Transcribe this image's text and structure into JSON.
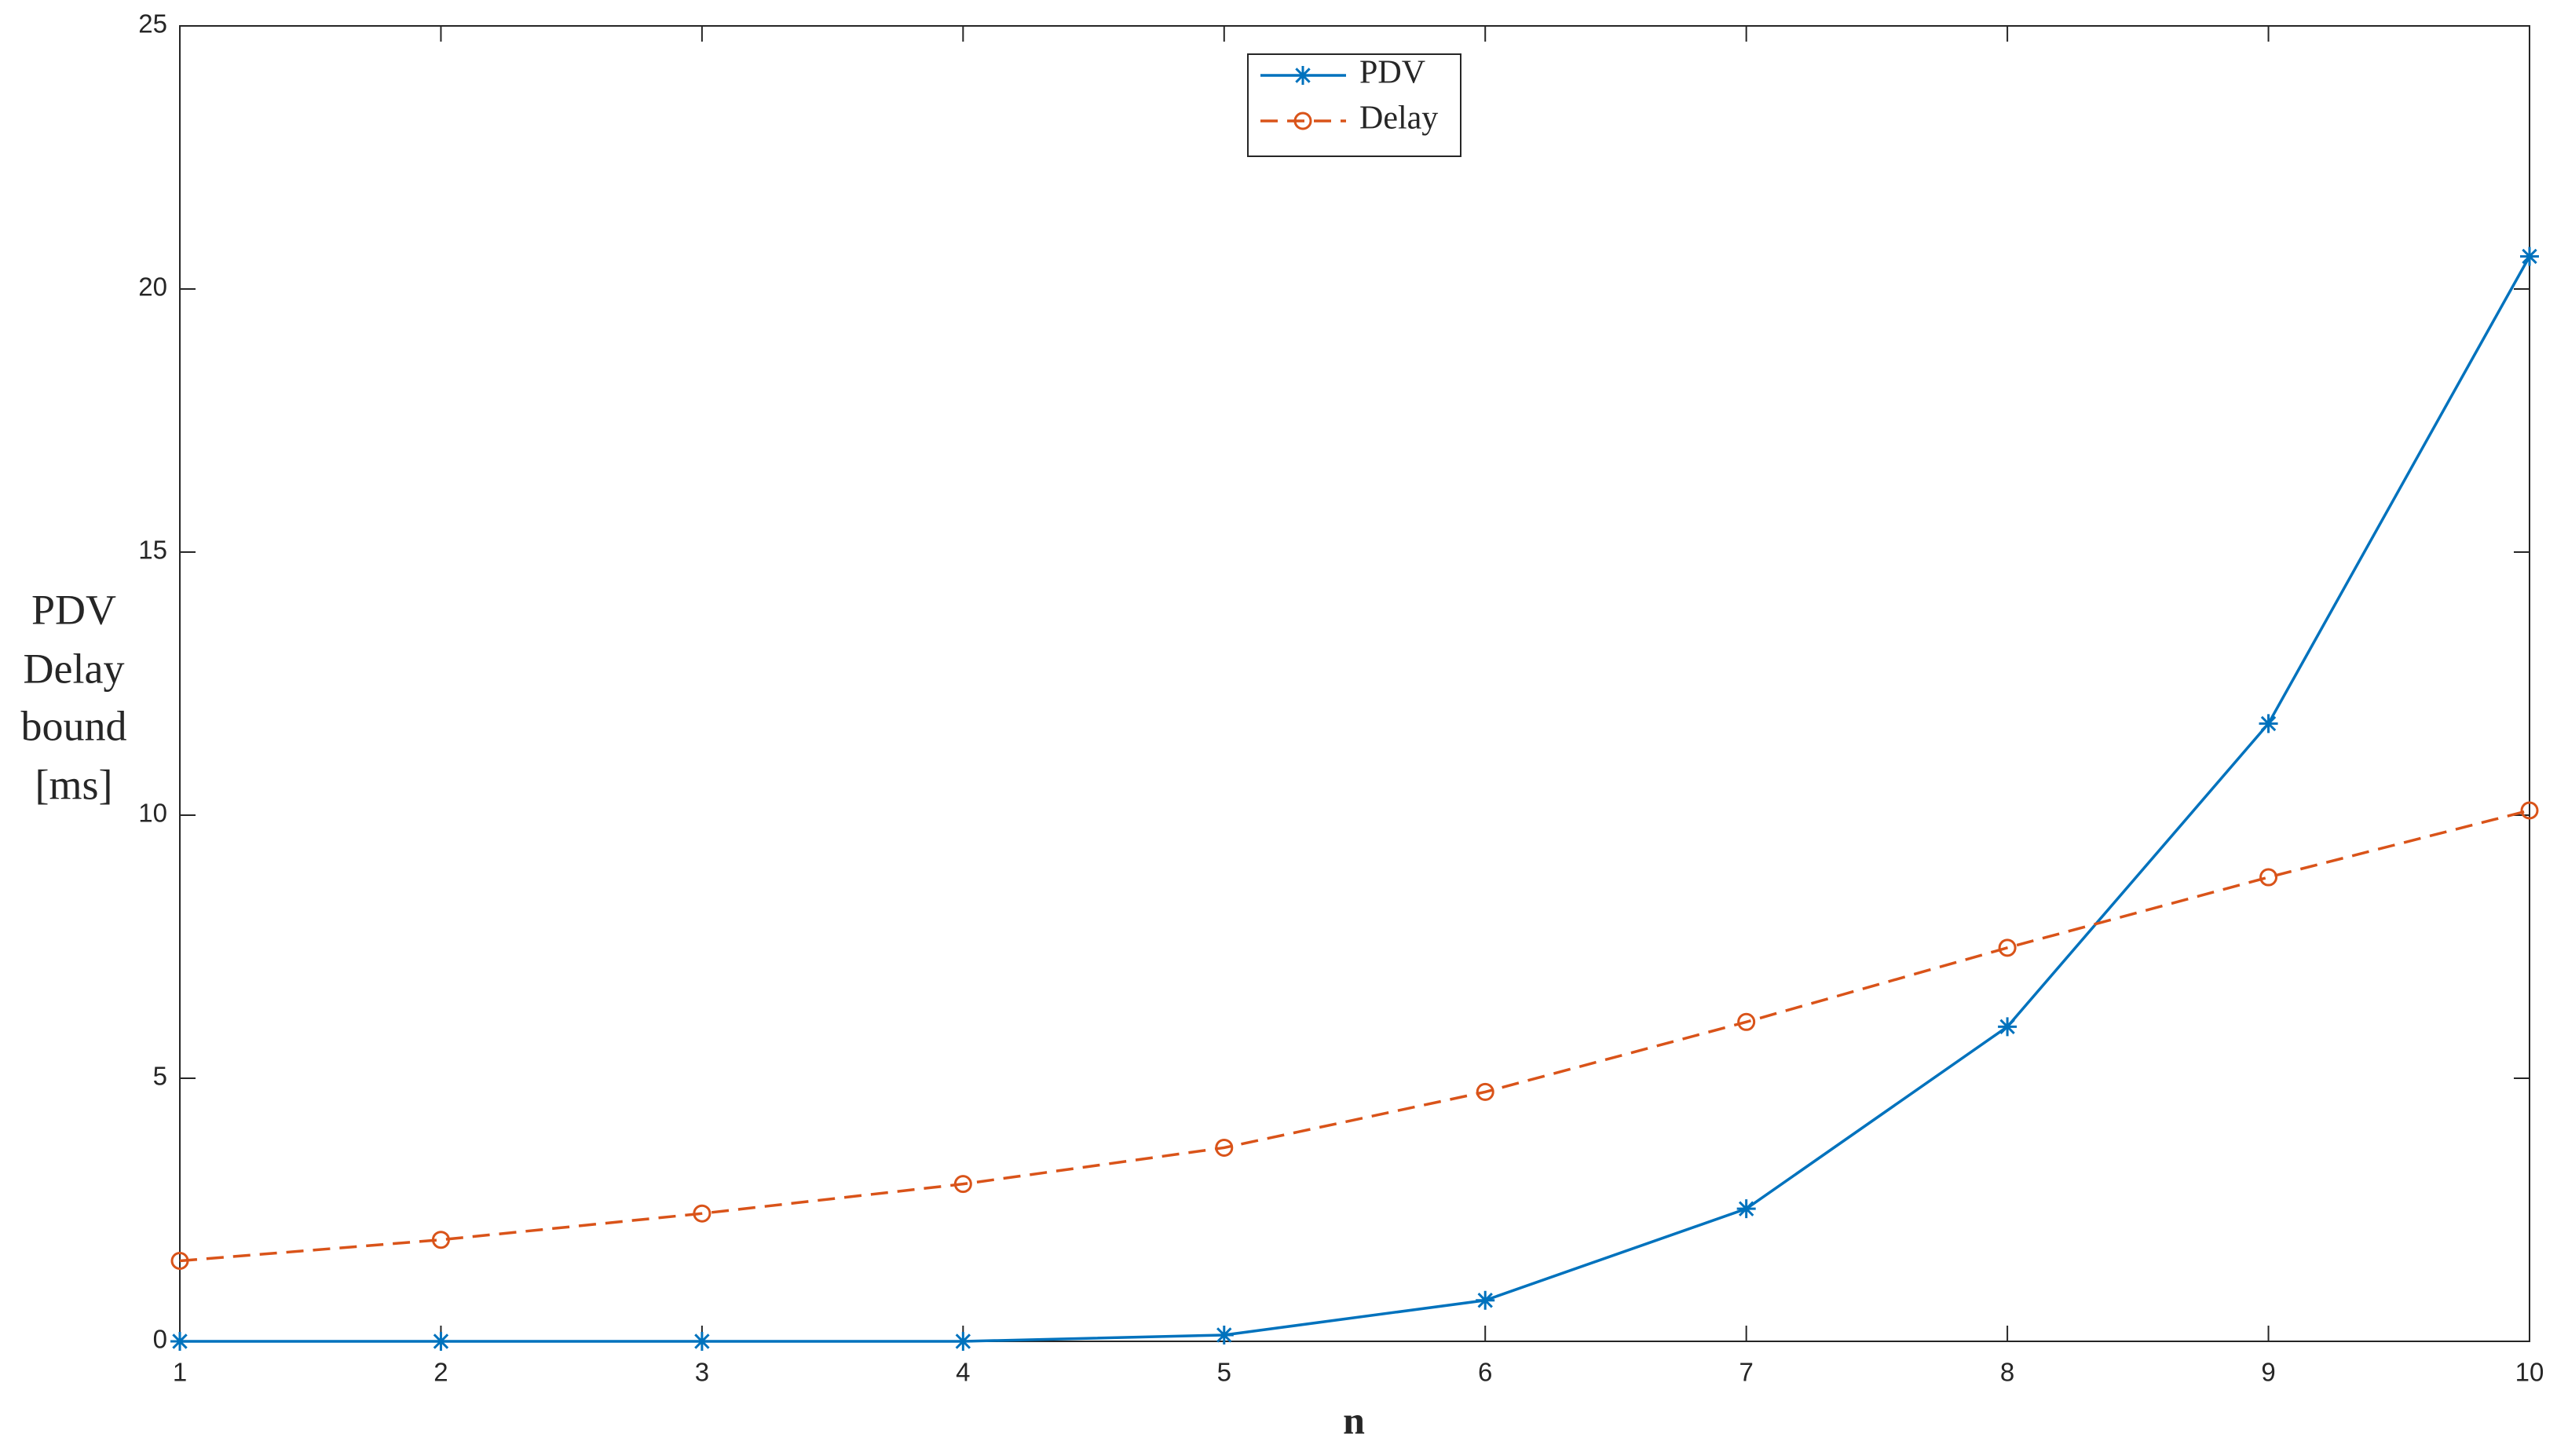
{
  "chart_data": {
    "type": "line",
    "x": [
      1,
      2,
      3,
      4,
      5,
      6,
      7,
      8,
      9,
      10
    ],
    "series": [
      {
        "name": "PDV",
        "color": "#0072bd",
        "marker": "asterisk",
        "line_style": "solid",
        "values": [
          0,
          0,
          0,
          0,
          0.12,
          0.78,
          2.52,
          5.98,
          11.74,
          20.62
        ]
      },
      {
        "name": "Delay",
        "color": "#d95319",
        "marker": "circle",
        "line_style": "dashed",
        "values": [
          1.53,
          1.93,
          2.43,
          2.99,
          3.68,
          4.74,
          6.07,
          7.48,
          8.82,
          10.09
        ]
      }
    ],
    "xlabel": "n",
    "ylabel": [
      "PDV",
      "Delay",
      "bound",
      "[ms]"
    ],
    "xlim": [
      1,
      10
    ],
    "ylim": [
      0,
      25
    ],
    "xticks": [
      1,
      2,
      3,
      4,
      5,
      6,
      7,
      8,
      9,
      10
    ],
    "yticks": [
      0,
      5,
      10,
      15,
      20,
      25
    ],
    "grid": false,
    "legend": "top-center"
  }
}
